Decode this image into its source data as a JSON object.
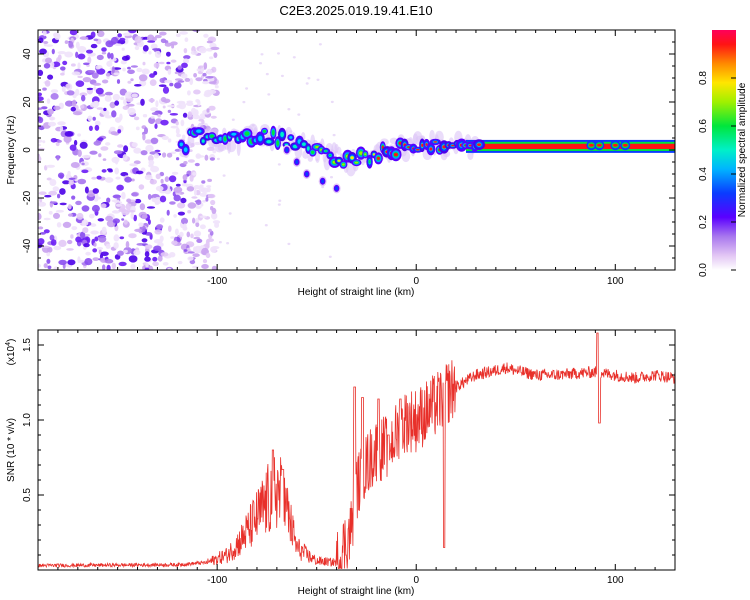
{
  "title": "C2E3.2025.019.19.41.E10",
  "chart_data": [
    {
      "type": "heatmap",
      "name": "spectrogram",
      "xlabel": "Height of straight line (km)",
      "ylabel": "Frequency (Hz)",
      "xlim": [
        -190,
        130
      ],
      "ylim": [
        -50,
        50
      ],
      "xticks": [
        -100,
        0,
        100
      ],
      "yticks": [
        -40,
        -20,
        0,
        20,
        40
      ],
      "colorbar": {
        "label": "Normalized spectral amplitude",
        "range": [
          0,
          1
        ],
        "ticks": [
          0.0,
          0.2,
          0.4,
          0.6,
          0.8
        ]
      },
      "noise_region_x": [
        -190,
        -100
      ],
      "main_track": [
        {
          "x": -115,
          "y": 8
        },
        {
          "x": -105,
          "y": 5
        },
        {
          "x": -95,
          "y": 4
        },
        {
          "x": -85,
          "y": 5
        },
        {
          "x": -75,
          "y": 6
        },
        {
          "x": -65,
          "y": 4
        },
        {
          "x": -55,
          "y": 1
        },
        {
          "x": -45,
          "y": -2
        },
        {
          "x": -35,
          "y": -4
        },
        {
          "x": -25,
          "y": -3
        },
        {
          "x": -15,
          "y": 0
        },
        {
          "x": -5,
          "y": 1
        },
        {
          "x": 5,
          "y": 2
        },
        {
          "x": 15,
          "y": 1.5
        },
        {
          "x": 30,
          "y": 1.5
        },
        {
          "x": 60,
          "y": 1.5
        },
        {
          "x": 90,
          "y": 2
        },
        {
          "x": 130,
          "y": 1.5
        }
      ],
      "side_branch": [
        {
          "x": -65,
          "y": 0
        },
        {
          "x": -60,
          "y": -5
        },
        {
          "x": -55,
          "y": -10
        },
        {
          "x": -47,
          "y": -13
        },
        {
          "x": -40,
          "y": -16
        }
      ]
    },
    {
      "type": "line",
      "name": "snr",
      "xlabel": "Height of straight line (km)",
      "ylabel": "SNR (10 * v/v)",
      "scale_label": "(x10",
      "scale_exp": "4",
      "xlim": [
        -190,
        130
      ],
      "ylim": [
        0,
        1.6
      ],
      "xticks": [
        -100,
        0,
        100
      ],
      "yticks": [
        0.5,
        1.0,
        1.5
      ],
      "ytick_labels": [
        "0.5",
        "1.0",
        "1.5"
      ],
      "color": "#e8302a",
      "envelope": [
        [
          -190,
          0.03
        ],
        [
          -120,
          0.035
        ],
        [
          -105,
          0.05
        ],
        [
          -95,
          0.1
        ],
        [
          -88,
          0.2
        ],
        [
          -80,
          0.35
        ],
        [
          -75,
          0.45
        ],
        [
          -70,
          0.55
        ],
        [
          -65,
          0.4
        ],
        [
          -60,
          0.15
        ],
        [
          -55,
          0.1
        ],
        [
          -50,
          0.06
        ],
        [
          -40,
          0.05
        ],
        [
          -33,
          0.25
        ],
        [
          -30,
          0.55
        ],
        [
          -25,
          0.7
        ],
        [
          -20,
          0.8
        ],
        [
          -15,
          0.82
        ],
        [
          -10,
          0.9
        ],
        [
          -5,
          1.0
        ],
        [
          0,
          1.0
        ],
        [
          5,
          1.05
        ],
        [
          10,
          1.1
        ],
        [
          15,
          1.18
        ],
        [
          20,
          1.22
        ],
        [
          25,
          1.26
        ],
        [
          30,
          1.3
        ],
        [
          40,
          1.33
        ],
        [
          45,
          1.35
        ],
        [
          50,
          1.33
        ],
        [
          60,
          1.3
        ],
        [
          70,
          1.3
        ],
        [
          80,
          1.31
        ],
        [
          90,
          1.32
        ],
        [
          100,
          1.3
        ],
        [
          110,
          1.28
        ],
        [
          120,
          1.3
        ],
        [
          130,
          1.28
        ]
      ],
      "spikes": [
        {
          "x": -72,
          "y": 0.8
        },
        {
          "x": -67,
          "y": 0.67
        },
        {
          "x": -31,
          "y": 1.22
        },
        {
          "x": -27,
          "y": 1.15
        },
        {
          "x": -19,
          "y": 1.14
        },
        {
          "x": -14,
          "y": 0.9
        },
        {
          "x": -8,
          "y": 1.14
        },
        {
          "x": 14,
          "y": 0.15
        },
        {
          "x": 91,
          "y": 1.58
        },
        {
          "x": 92,
          "y": 0.98
        }
      ]
    }
  ]
}
